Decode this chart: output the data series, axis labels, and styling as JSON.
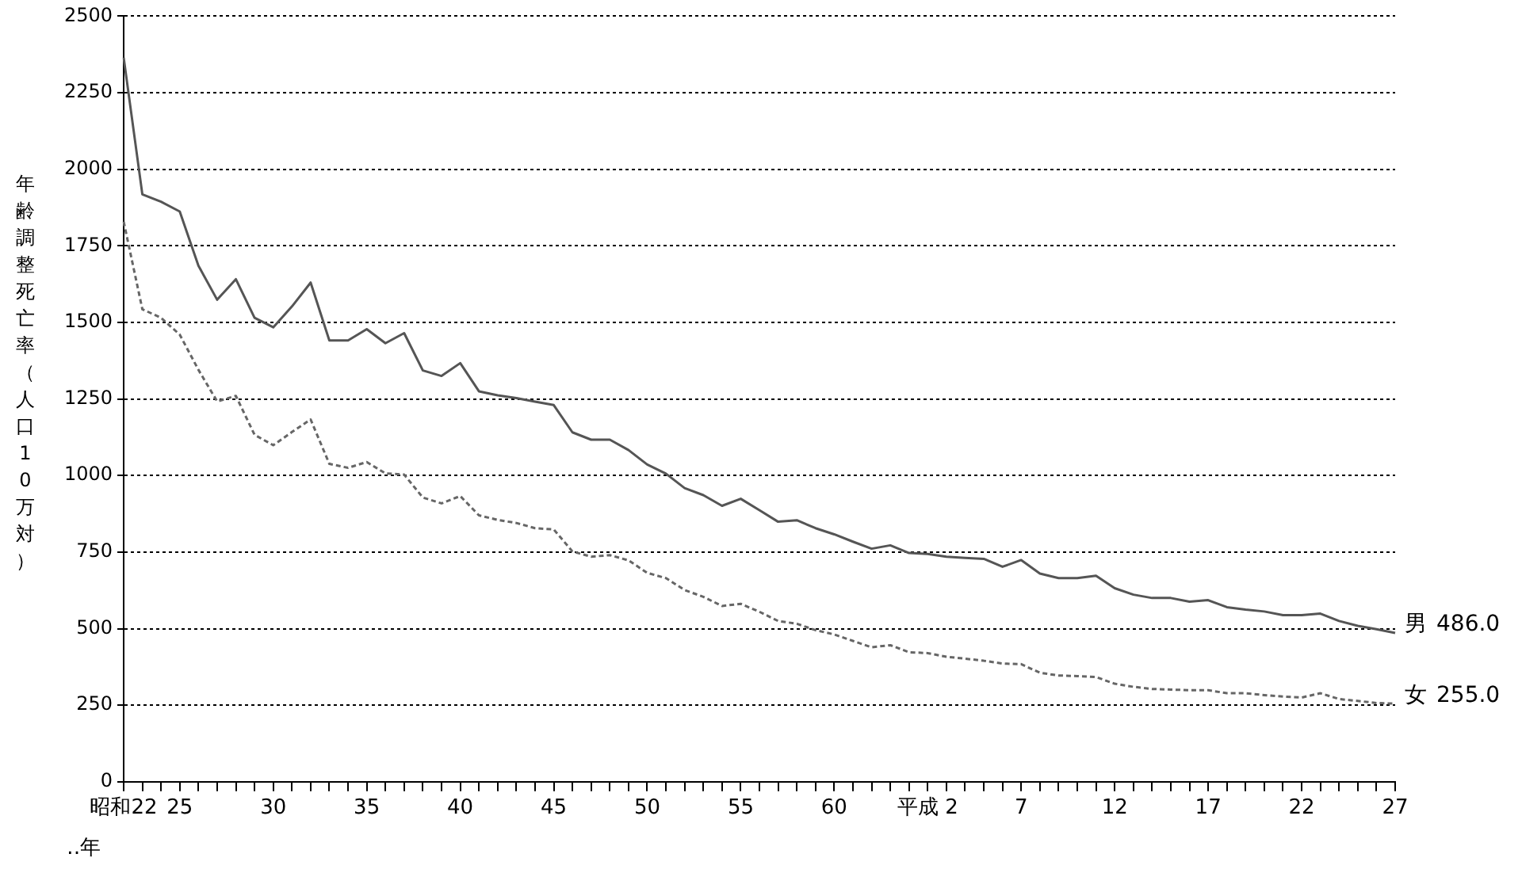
{
  "chart_data": {
    "type": "line",
    "xlabel": "‥年",
    "ylabel": "年齢調整死亡率（人口10万対）",
    "categories": [
      "昭和22",
      null,
      null,
      "25",
      null,
      null,
      null,
      null,
      "30",
      null,
      null,
      null,
      null,
      "35",
      null,
      null,
      null,
      null,
      "40",
      null,
      null,
      null,
      null,
      "45",
      null,
      null,
      null,
      null,
      "50",
      null,
      null,
      null,
      null,
      "55",
      null,
      null,
      null,
      null,
      "60",
      null,
      null,
      null,
      null,
      "平成 2",
      null,
      null,
      null,
      null,
      "7",
      null,
      null,
      null,
      null,
      "12",
      null,
      null,
      null,
      null,
      "17",
      null,
      null,
      null,
      null,
      "22",
      null,
      null,
      null,
      null,
      "27"
    ],
    "series": [
      {
        "name": "男",
        "color": "#555555",
        "line_style": "solid",
        "values": [
          2365,
          1918,
          1894,
          1862,
          1685,
          1574,
          1641,
          1515,
          1484,
          1552,
          1630,
          1441,
          1441,
          1478,
          1432,
          1465,
          1343,
          1325,
          1367,
          1275,
          1262,
          1253,
          1241,
          1230,
          1141,
          1117,
          1117,
          1083,
          1036,
          1006,
          959,
          936,
          901,
          924,
          887,
          849,
          854,
          828,
          808,
          784,
          761,
          772,
          747,
          744,
          735,
          731,
          728,
          702,
          724,
          680,
          665,
          665,
          673,
          632,
          611,
          600,
          600,
          588,
          593,
          570,
          562,
          556,
          544,
          544,
          549,
          525,
          509,
          498,
          486
        ],
        "value_labels": [
          null,
          null,
          null,
          null,
          null,
          null,
          null,
          null,
          null,
          null,
          null,
          null,
          null,
          null,
          null,
          null,
          null,
          null,
          null,
          null,
          null,
          null,
          null,
          null,
          null,
          null,
          null,
          null,
          null,
          null,
          null,
          null,
          null,
          null,
          null,
          null,
          null,
          null,
          null,
          null,
          null,
          null,
          null,
          null,
          null,
          null,
          null,
          null,
          null,
          null,
          null,
          null,
          null,
          null,
          null,
          null,
          null,
          null,
          null,
          null,
          null,
          null,
          null,
          null,
          null,
          null,
          null,
          null,
          "486.0"
        ]
      },
      {
        "name": "女",
        "color": "#666666",
        "line_style": "dashed",
        "values": [
          1829,
          1543,
          1515,
          1460,
          1345,
          1242,
          1260,
          1133,
          1099,
          1142,
          1183,
          1038,
          1025,
          1044,
          1007,
          1003,
          928,
          909,
          933,
          870,
          855,
          845,
          828,
          824,
          752,
          735,
          740,
          723,
          682,
          665,
          626,
          604,
          574,
          581,
          555,
          525,
          516,
          495,
          481,
          460,
          439,
          446,
          423,
          420,
          408,
          402,
          395,
          386,
          384,
          356,
          347,
          345,
          342,
          320,
          310,
          303,
          301,
          299,
          299,
          289,
          289,
          283,
          278,
          275,
          289,
          270,
          264,
          257,
          255
        ],
        "value_labels": [
          null,
          null,
          null,
          null,
          null,
          null,
          null,
          null,
          null,
          null,
          null,
          null,
          null,
          null,
          null,
          null,
          null,
          null,
          null,
          null,
          null,
          null,
          null,
          null,
          null,
          null,
          null,
          null,
          null,
          null,
          null,
          null,
          null,
          null,
          null,
          null,
          null,
          null,
          null,
          null,
          null,
          null,
          null,
          null,
          null,
          null,
          null,
          null,
          null,
          null,
          null,
          null,
          null,
          null,
          null,
          null,
          null,
          null,
          null,
          null,
          null,
          null,
          null,
          null,
          null,
          null,
          null,
          null,
          "255.0"
        ]
      }
    ],
    "ylim": [
      0,
      2500
    ],
    "yticks": [
      0,
      250,
      500,
      750,
      1000,
      1250,
      1500,
      1750,
      2000,
      2250,
      2500
    ],
    "grid": "y",
    "legend": false,
    "marker": "none"
  }
}
